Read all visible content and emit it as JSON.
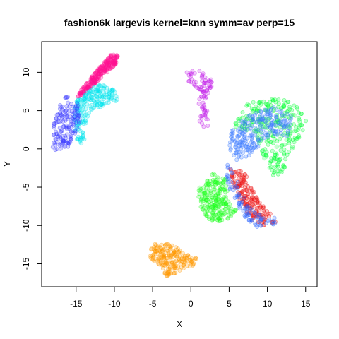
{
  "chart_data": {
    "type": "scatter",
    "title": "fashion6k largevis kernel=knn symm=av perp=15",
    "xlabel": "X",
    "ylabel": "Y",
    "xlim": [
      -19.5,
      16.5
    ],
    "ylim": [
      -18,
      14
    ],
    "xticks": [
      -15,
      -10,
      -5,
      0,
      5,
      10,
      15
    ],
    "yticks": [
      -15,
      -10,
      -5,
      0,
      5,
      10
    ],
    "grid": false,
    "legend": "none",
    "point_opacity": 0.45,
    "clusters": [
      {
        "color": "#FF1493",
        "count": 260,
        "outline": [
          [
            -14.5,
            7.5
          ],
          [
            -12.5,
            10
          ],
          [
            -10.5,
            12.3
          ],
          [
            -9.5,
            12.3
          ],
          [
            -9.8,
            11
          ],
          [
            -11.5,
            9.5
          ],
          [
            -13.5,
            7.6
          ],
          [
            -15,
            6.5
          ]
        ]
      },
      {
        "color": "#00E5EE",
        "count": 200,
        "outline": [
          [
            -14.8,
            6.5
          ],
          [
            -12,
            8.5
          ],
          [
            -10,
            7.8
          ],
          [
            -9.5,
            6.2
          ],
          [
            -11.5,
            5.5
          ],
          [
            -13.2,
            5
          ],
          [
            -13.8,
            2.5
          ],
          [
            -14,
            0.2
          ],
          [
            -14.8,
            0.2
          ],
          [
            -15.3,
            3.5
          ],
          [
            -15.3,
            5.5
          ]
        ]
      },
      {
        "color": "#3A3AFF",
        "count": 150,
        "outline": [
          [
            -16.5,
            7
          ],
          [
            -14.8,
            6.2
          ],
          [
            -14.5,
            3.5
          ],
          [
            -15.2,
            1.5
          ],
          [
            -16.2,
            0
          ],
          [
            -17.3,
            -0.5
          ],
          [
            -18.2,
            0.2
          ],
          [
            -18,
            3
          ],
          [
            -17.2,
            5.5
          ]
        ]
      },
      {
        "color": "#C218E8",
        "count": 90,
        "outline": [
          [
            -0.8,
            10.2
          ],
          [
            1.2,
            10.2
          ],
          [
            3,
            8.8
          ],
          [
            2.7,
            7.5
          ],
          [
            2,
            6.5
          ],
          [
            2.2,
            4.5
          ],
          [
            2.3,
            2.8
          ],
          [
            1.3,
            2.8
          ],
          [
            0.8,
            5
          ],
          [
            1.2,
            7.5
          ],
          [
            -0.5,
            9
          ]
        ]
      },
      {
        "color": "#FF9A00",
        "count": 200,
        "outline": [
          [
            -5.3,
            -13
          ],
          [
            -4.2,
            -12
          ],
          [
            -2.5,
            -12.5
          ],
          [
            -0.5,
            -13.8
          ],
          [
            1,
            -14.3
          ],
          [
            0.2,
            -15.3
          ],
          [
            -1.5,
            -16
          ],
          [
            -3,
            -16.8
          ],
          [
            -4,
            -15.5
          ],
          [
            -5.5,
            -14
          ]
        ]
      },
      {
        "color": "#00FF33",
        "count": 260,
        "outline": [
          [
            7.5,
            6
          ],
          [
            10.5,
            6.5
          ],
          [
            12.5,
            6.5
          ],
          [
            14.5,
            5
          ],
          [
            15.2,
            3.5
          ],
          [
            14.2,
            1.5
          ],
          [
            13,
            -0.5
          ],
          [
            12,
            -3.5
          ],
          [
            10.5,
            -3.7
          ],
          [
            9.5,
            -1.5
          ],
          [
            9,
            0.5
          ],
          [
            8.5,
            2
          ],
          [
            6.5,
            2.5
          ],
          [
            5.5,
            3
          ]
        ]
      },
      {
        "color": "#3A7AFF",
        "count": 230,
        "outline": [
          [
            5,
            2
          ],
          [
            7.5,
            4.5
          ],
          [
            9.5,
            5.5
          ],
          [
            11.5,
            5.5
          ],
          [
            13.5,
            4
          ],
          [
            12.5,
            1.5
          ],
          [
            10.5,
            1.8
          ],
          [
            9,
            0.5
          ],
          [
            7.5,
            -1
          ],
          [
            6,
            -1.5
          ],
          [
            5,
            0
          ]
        ]
      },
      {
        "color": "#22FF22",
        "count": 230,
        "outline": [
          [
            1,
            -5
          ],
          [
            3,
            -3
          ],
          [
            4.7,
            -4
          ],
          [
            5,
            -7
          ],
          [
            6,
            -8
          ],
          [
            4.5,
            -9.5
          ],
          [
            2.5,
            -9.5
          ],
          [
            1,
            -7.5
          ]
        ]
      },
      {
        "color": "#EE1111",
        "count": 180,
        "outline": [
          [
            5,
            -2.5
          ],
          [
            7,
            -3
          ],
          [
            8,
            -5
          ],
          [
            9,
            -7
          ],
          [
            10.5,
            -8.5
          ],
          [
            11.2,
            -9.5
          ],
          [
            9.5,
            -10
          ],
          [
            8,
            -9.5
          ],
          [
            6.5,
            -7
          ],
          [
            5.5,
            -4.5
          ]
        ]
      },
      {
        "color": "#2E66FF",
        "count": 90,
        "outline": [
          [
            4.5,
            -3
          ],
          [
            5,
            -1.5
          ],
          [
            6,
            -4
          ],
          [
            7.5,
            -7.5
          ],
          [
            9.5,
            -9
          ],
          [
            11.3,
            -9
          ],
          [
            11.5,
            -9.8
          ],
          [
            8.5,
            -10.2
          ],
          [
            6.5,
            -8.5
          ],
          [
            5,
            -5.5
          ]
        ]
      }
    ]
  }
}
